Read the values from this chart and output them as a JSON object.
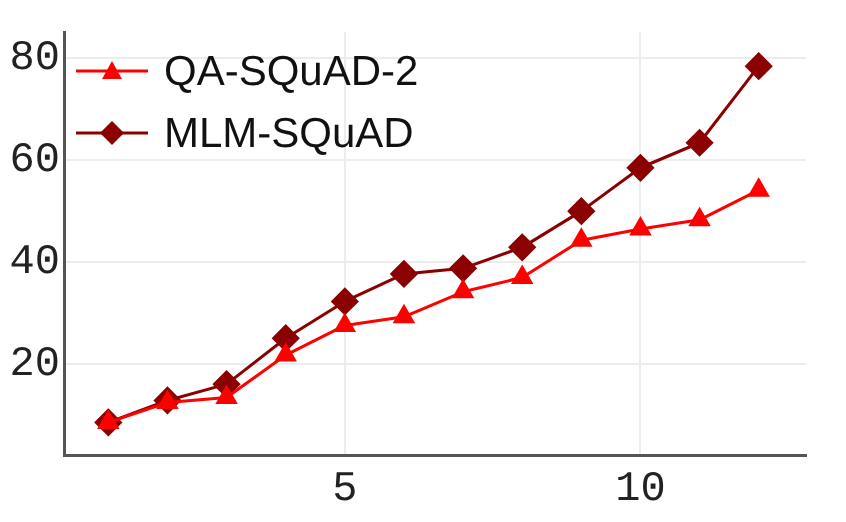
{
  "chart_data": {
    "type": "line",
    "x": [
      1,
      2,
      3,
      4,
      5,
      6,
      7,
      8,
      9,
      10,
      11,
      12
    ],
    "series": [
      {
        "name": "QA-SQuAD-2",
        "color": "#ff0000",
        "marker": "triangle",
        "values": [
          8.5,
          12.4,
          13.4,
          21.7,
          27.5,
          29.2,
          34.1,
          36.9,
          44.2,
          46.4,
          48.2,
          54
        ]
      },
      {
        "name": "MLM-SQuAD",
        "color": "#8b0000",
        "marker": "diamond",
        "values": [
          8.5,
          12.8,
          16,
          25,
          32.2,
          37.6,
          38.7,
          42.8,
          49.9,
          58.4,
          63.3,
          78.3
        ]
      }
    ],
    "xlim": [
      0.25,
      12.8
    ],
    "xticks": [
      5,
      10
    ],
    "ylim": [
      2,
      85
    ],
    "yticks": [
      20,
      40,
      60,
      80
    ],
    "grid": true,
    "legend": "top left",
    "line_style": "solid"
  }
}
